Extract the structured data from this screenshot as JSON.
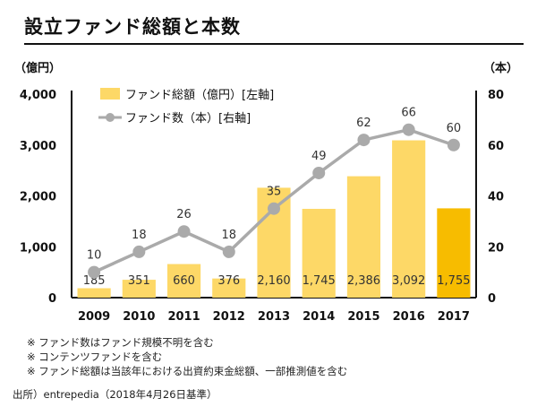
{
  "page": {
    "title": "設立ファンド総額と本数",
    "notes": [
      "※ ファンド数はファンド規模不明を含む",
      "※ コンテンツファンドを含む",
      "※ ファンド総額は当該年における出資約束金総額、一部推測値を含む"
    ],
    "source": "出所）entrepedia（2018年4月26日基準）"
  },
  "colors": {
    "bar": "#FDD867",
    "bar_highlight": "#F7BC00",
    "line": "#AAAAAA",
    "axis": "#111111"
  },
  "chart_data": {
    "type": "bar",
    "title": "",
    "categories": [
      "2009",
      "2010",
      "2011",
      "2012",
      "2013",
      "2014",
      "2015",
      "2016",
      "2017"
    ],
    "yunit_left": "（億円）",
    "yunit_right": "（本）",
    "ylim_left": [
      0,
      4000
    ],
    "ylim_right": [
      0,
      80
    ],
    "yticks_left": [
      "0",
      "1,000",
      "2,000",
      "3,000",
      "4,000"
    ],
    "yticks_right": [
      "0",
      "20",
      "40",
      "60",
      "80"
    ],
    "grid": false,
    "legend_position": "top-left",
    "series": [
      {
        "name": "ファンド総額（億円）[左軸]",
        "type": "bar",
        "axis": "left",
        "values": [
          185,
          351,
          660,
          376,
          2160,
          1745,
          2386,
          3092,
          1755
        ],
        "labels": [
          "185",
          "351",
          "660",
          "376",
          "2,160",
          "1,745",
          "2,386",
          "3,092",
          "1,755"
        ]
      },
      {
        "name": "ファンド数（本）[右軸]",
        "type": "line",
        "axis": "right",
        "values": [
          10,
          18,
          26,
          18,
          35,
          49,
          62,
          66,
          60
        ],
        "labels": [
          "10",
          "18",
          "26",
          "18",
          "35",
          "49",
          "62",
          "66",
          "60"
        ]
      }
    ]
  }
}
